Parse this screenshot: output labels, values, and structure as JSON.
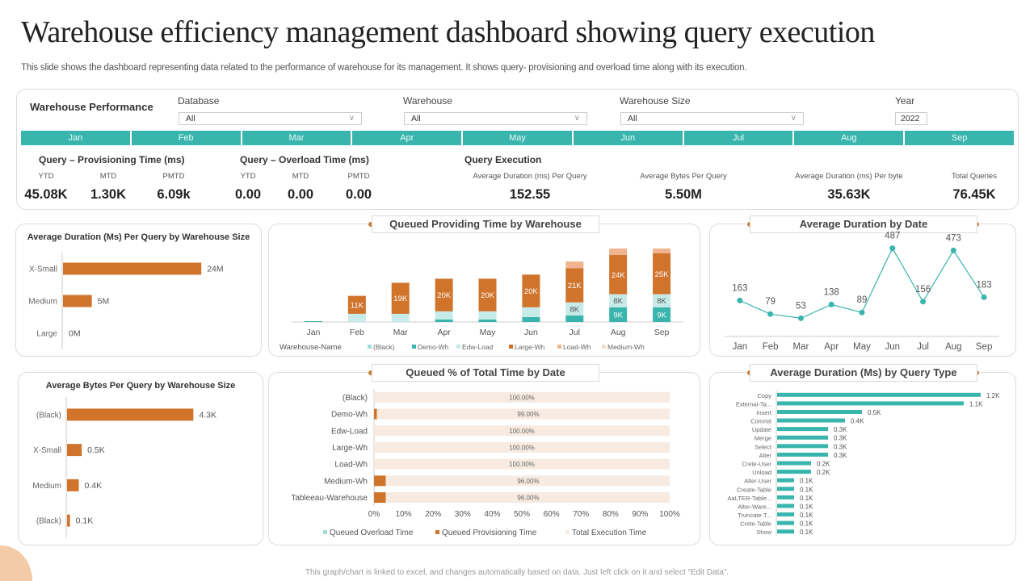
{
  "page": {
    "title": "Warehouse efficiency management dashboard showing query execution",
    "subtitle": "This slide shows the dashboard representing data related to the performance of warehouse for its management. It shows query- provisioning and overload time along with its execution.",
    "footer": "This graph/chart is linked to excel, and changes automatically based on data. Just left click on it and select “Edit Data”."
  },
  "performance": {
    "title": "Warehouse Performance",
    "filters": {
      "database": {
        "label": "Database",
        "value": "All"
      },
      "warehouse": {
        "label": "Warehouse",
        "value": "All"
      },
      "warehouse_size": {
        "label": "Warehouse Size",
        "value": "All"
      },
      "year": {
        "label": "Year",
        "value": "2022"
      }
    },
    "months": [
      "Jan",
      "Feb",
      "Mar",
      "Apr",
      "May",
      "Jun",
      "Jul",
      "Aug",
      "Sep"
    ],
    "provisioning": {
      "title": "Query – Provisioning  Time (ms)",
      "ytd_label": "YTD",
      "ytd": "45.08K",
      "mtd_label": "MTD",
      "mtd": "1.30K",
      "pmtd_label": "PMTD",
      "pmtd": "6.09k"
    },
    "overload": {
      "title": "Query – Overload Time (ms)",
      "ytd_label": "YTD",
      "ytd": "0.00",
      "mtd_label": "MTD",
      "mtd": "0.00",
      "pmtd_label": "PMTD",
      "pmtd": "0.00"
    },
    "execution": {
      "title": "Query Execution",
      "avg_duration_label": "Average Duration (ms) Per Query",
      "avg_duration": "152.55",
      "avg_bytes_label": "Average Bytes Per Query",
      "avg_bytes": "5.50M",
      "avg_duration_byte_label": "Average Duration (ms) Per byte",
      "avg_duration_byte": "35.63K",
      "total_queries_label": "Total Queries",
      "total_queries": "76.45K"
    }
  },
  "colors": {
    "orange": "#d0742c",
    "teal": "#3ab5ad",
    "light_teal": "#c6ebe9",
    "peach": "#f0b58e",
    "light_peach": "#f7ebe1",
    "accent_dot": "#c87f3d"
  },
  "chart_data": [
    {
      "id": "dur_by_size",
      "type": "bar",
      "orientation": "horizontal",
      "title": "Average Duration (Ms) Per Query by Warehouse Size",
      "categories": [
        "X-Small",
        "Medium",
        "Large"
      ],
      "values": [
        24,
        5,
        0
      ],
      "value_labels": [
        "24M",
        "5M",
        "0M"
      ],
      "unit": "M",
      "xlim": [
        0,
        30
      ]
    },
    {
      "id": "queued_providing",
      "type": "bar",
      "stacked": true,
      "title": "Queued Providing Time by Warehouse",
      "legend_title": "Warehouse-Name",
      "legend_position": "bottom",
      "categories": [
        "Jan",
        "Feb",
        "Mar",
        "Apr",
        "May",
        "Jun",
        "Jul",
        "Aug",
        "Sep"
      ],
      "series": [
        {
          "name": "(Black)",
          "color": "#9fdcd7",
          "values": [
            0,
            0,
            0,
            0,
            0,
            0,
            0,
            0,
            0
          ]
        },
        {
          "name": "Demo-Wh",
          "color": "#3ab5ad",
          "values": [
            0.5,
            0,
            0,
            1.5,
            1.5,
            3,
            4,
            9,
            9
          ]
        },
        {
          "name": "Edw-Load",
          "color": "#c6ebe9",
          "values": [
            0,
            5,
            5,
            5,
            5,
            6,
            8,
            8,
            8
          ]
        },
        {
          "name": "Large-Wh",
          "color": "#d0742c",
          "values": [
            0,
            11,
            19,
            20,
            20,
            20,
            21,
            24,
            25
          ]
        },
        {
          "name": "Load-Wh",
          "color": "#f0b58e",
          "values": [
            0,
            0,
            0,
            0,
            0,
            0,
            4,
            4,
            3
          ]
        },
        {
          "name": "Medium-Wh",
          "color": "#f7dcc7",
          "values": [
            0,
            0,
            0,
            0,
            0,
            0,
            0,
            0,
            0
          ]
        }
      ],
      "data_labels": {
        "Large-Wh": [
          "",
          "11K",
          "19K",
          "20K",
          "20K",
          "20K",
          "21K",
          "24K",
          "25K"
        ],
        "Edw-Load": [
          "",
          "",
          "",
          "",
          "",
          "",
          "8K",
          "8K",
          "8K"
        ],
        "Demo-Wh": [
          "",
          "",
          "",
          "",
          "",
          "",
          "",
          "9K",
          "9K"
        ]
      },
      "ylim": [
        0,
        50
      ]
    },
    {
      "id": "avg_dur_date",
      "type": "line",
      "title": "Average Duration by Date",
      "categories": [
        "Jan",
        "Feb",
        "Mar",
        "Apr",
        "May",
        "Jun",
        "Jul",
        "Aug",
        "Sep"
      ],
      "values": [
        163,
        79,
        53,
        138,
        89,
        487,
        156,
        473,
        183
      ],
      "ylim": [
        0,
        550
      ]
    },
    {
      "id": "bytes_by_size",
      "type": "bar",
      "orientation": "horizontal",
      "title": "Average Bytes Per Query by Warehouse Size",
      "categories": [
        "(Black)",
        "X-Small",
        "Medium",
        "(Black)"
      ],
      "values": [
        4.3,
        0.5,
        0.4,
        0.1
      ],
      "value_labels": [
        "4.3K",
        "0.5K",
        "0.4K",
        "0.1K"
      ],
      "unit": "K",
      "xlim": [
        0,
        5.5
      ]
    },
    {
      "id": "queued_pct",
      "type": "bar",
      "orientation": "horizontal",
      "stacked": true,
      "title": "Queued %  of Total Time by Date",
      "categories": [
        "(Black)",
        "Demo-Wh",
        "Edw-Load",
        "Large-Wh",
        "Load-Wh",
        "Medium-Wh",
        "Tableeau-Warehouse"
      ],
      "series": [
        {
          "name": "Queued Overload Time",
          "color": "#9fdcd7",
          "values": [
            0,
            0,
            0,
            0,
            0,
            0,
            0
          ]
        },
        {
          "name": "Queued Provisioning Time",
          "color": "#d0742c",
          "values": [
            0,
            1,
            0,
            0,
            0,
            4,
            4
          ]
        },
        {
          "name": "Total Execution Time",
          "color": "#f7ebe1",
          "values": [
            100,
            99,
            100,
            100,
            100,
            96,
            96
          ]
        }
      ],
      "data_labels": [
        "100.00%",
        "99.00%",
        "100.00%",
        "100.00%",
        "100.00%",
        "96.00%",
        "96.00%"
      ],
      "xticks": [
        "0%",
        "10%",
        "20%",
        "30%",
        "40%",
        "50%",
        "60%",
        "70%",
        "80%",
        "90%",
        "100%"
      ],
      "xlim": [
        0,
        100
      ],
      "legend_position": "bottom"
    },
    {
      "id": "dur_by_type",
      "type": "bar",
      "orientation": "horizontal",
      "title": "Average Duration (Ms)  by Query Type",
      "categories": [
        "Copy",
        "External-Ta...",
        "Insert",
        "Commit",
        "Update",
        "Merge",
        "Select",
        "Alter",
        "Crete-User",
        "Unload",
        "Alter-User",
        "Create-Table",
        "AaLTER-Table...",
        "Alter-Ware...",
        "Truncate-T...",
        "Crete-Table",
        "Show"
      ],
      "values": [
        1.2,
        1.1,
        0.5,
        0.4,
        0.3,
        0.3,
        0.3,
        0.3,
        0.2,
        0.2,
        0.1,
        0.1,
        0.1,
        0.1,
        0.1,
        0.1,
        0.1
      ],
      "value_labels": [
        "1.2K",
        "1.1K",
        "0.5K",
        "0.4K",
        "0.3K",
        "0.3K",
        "0.3K",
        "0.3K",
        "0.2K",
        "0.2K",
        "0.1K",
        "0.1K",
        "0.1K",
        "0.1K",
        "0.1K",
        "0.1K",
        "0.1K"
      ],
      "unit": "K",
      "xlim": [
        0,
        1.2
      ]
    }
  ]
}
